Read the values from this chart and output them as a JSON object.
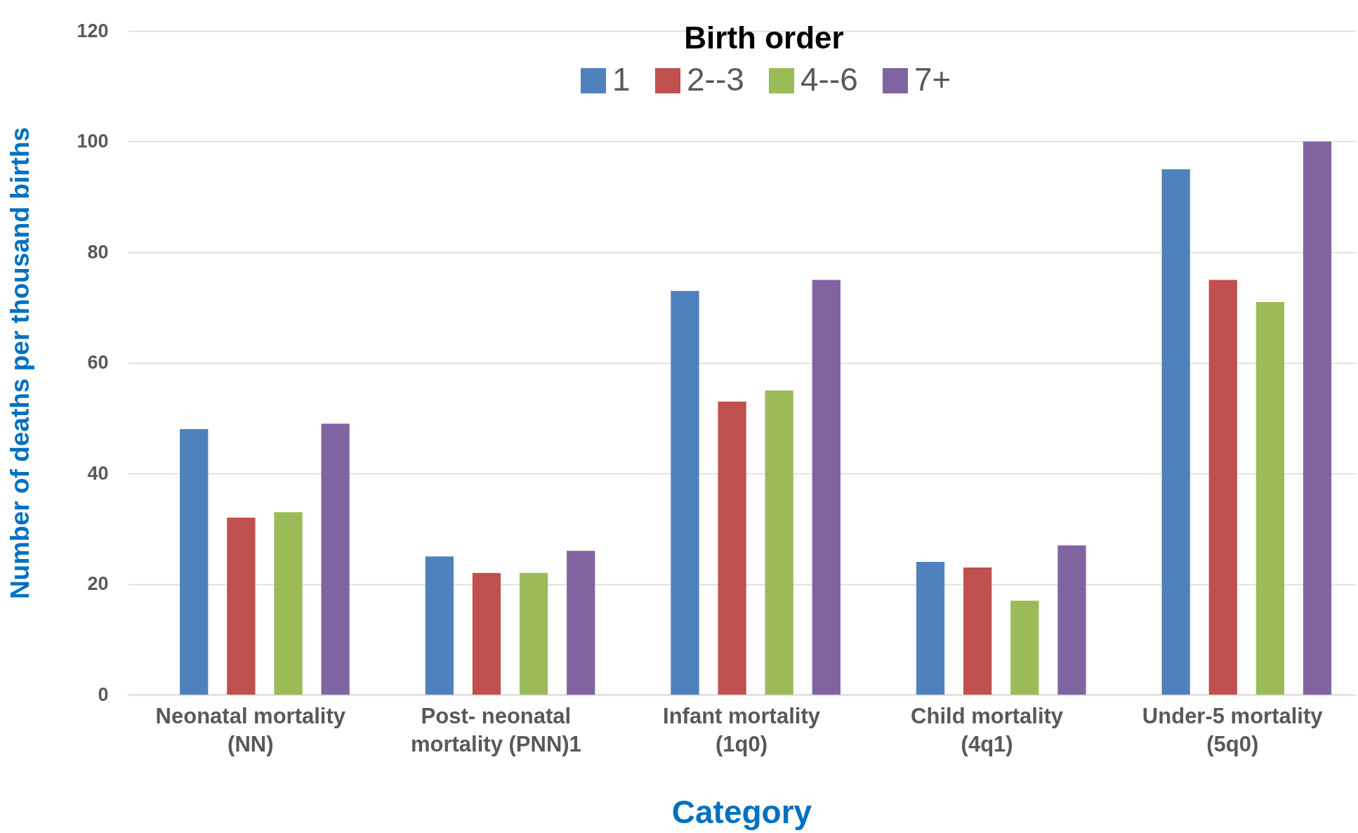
{
  "chart_data": {
    "type": "bar",
    "xlabel": "Category",
    "ylabel": "Number of deaths per thousand births",
    "legend_title": "Birth order",
    "legend": "top",
    "categories": [
      "Neonatal mortality (NN)",
      "Post- neonatal mortality (PNN)1",
      "Infant mortality (1q0)",
      "Child mortality (4q1)",
      "Under-5 mortality (5q0)"
    ],
    "series": [
      {
        "name": "1",
        "color": "#4f81bd",
        "values": [
          48,
          25,
          73,
          24,
          95
        ]
      },
      {
        "name": "2--3",
        "color": "#c0504d",
        "values": [
          32,
          22,
          53,
          23,
          75
        ]
      },
      {
        "name": "4--6",
        "color": "#9bbb59",
        "values": [
          33,
          22,
          55,
          17,
          71
        ]
      },
      {
        "name": "7+",
        "color": "#8064a2",
        "values": [
          49,
          26,
          75,
          27,
          100
        ]
      }
    ],
    "ylim": [
      0,
      120
    ],
    "yticks": [
      0,
      20,
      40,
      60,
      80,
      100,
      120
    ],
    "grid": "y"
  }
}
